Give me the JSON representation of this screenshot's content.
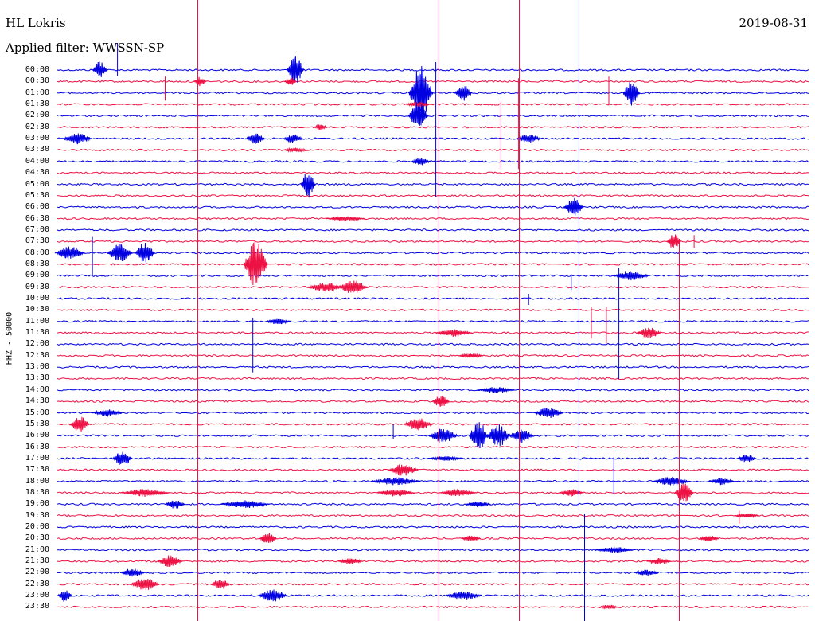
{
  "header": {
    "station": "HL Lokris",
    "filter": "Applied filter: WWSSN-SP",
    "date": "2019-08-31",
    "channel": "HHZ - 50000"
  },
  "chart_data": {
    "type": "line",
    "title": "HL Lokris",
    "subtitle": "Applied filter: WWSSN-SP",
    "date": "2019-08-31",
    "ylabel": "HHZ - 50000",
    "colors": [
      "#0000e0",
      "#ee1144"
    ],
    "row_labels": [
      "00:00",
      "00:30",
      "01:00",
      "01:30",
      "02:00",
      "02:30",
      "03:00",
      "03:30",
      "04:00",
      "04:30",
      "05:00",
      "05:30",
      "06:00",
      "06:30",
      "07:00",
      "07:30",
      "08:00",
      "08:30",
      "09:00",
      "09:30",
      "10:00",
      "10:30",
      "11:00",
      "11:30",
      "12:00",
      "12:30",
      "13:00",
      "13:30",
      "14:00",
      "14:30",
      "15:00",
      "15:30",
      "16:00",
      "16:30",
      "17:00",
      "17:30",
      "18:00",
      "18:30",
      "19:00",
      "19:30",
      "20:00",
      "20:30",
      "21:00",
      "21:30",
      "22:00",
      "22:30",
      "23:00",
      "23:30"
    ],
    "events": [
      {
        "row": 0,
        "minute": 1.7,
        "amp": 11,
        "dur": 0.6
      },
      {
        "row": 0,
        "minute": 9.5,
        "amp": 18,
        "dur": 0.7
      },
      {
        "row": 1,
        "minute": 5.7,
        "amp": 6,
        "dur": 0.5
      },
      {
        "row": 1,
        "minute": 9.3,
        "amp": 5,
        "dur": 0.5
      },
      {
        "row": 2,
        "minute": 14.5,
        "amp": 34,
        "dur": 1.0
      },
      {
        "row": 2,
        "minute": 16.2,
        "amp": 10,
        "dur": 0.7
      },
      {
        "row": 2,
        "minute": 22.9,
        "amp": 16,
        "dur": 0.7
      },
      {
        "row": 3,
        "minute": 14.4,
        "amp": 4,
        "dur": 1.0
      },
      {
        "row": 4,
        "minute": 14.4,
        "amp": 18,
        "dur": 0.8
      },
      {
        "row": 5,
        "minute": 10.5,
        "amp": 5,
        "dur": 0.5
      },
      {
        "row": 6,
        "minute": 0.8,
        "amp": 7,
        "dur": 1.2
      },
      {
        "row": 6,
        "minute": 7.9,
        "amp": 7,
        "dur": 0.8
      },
      {
        "row": 6,
        "minute": 9.4,
        "amp": 6,
        "dur": 0.8
      },
      {
        "row": 6,
        "minute": 18.8,
        "amp": 6,
        "dur": 1.0
      },
      {
        "row": 7,
        "minute": 9.5,
        "amp": 3,
        "dur": 1.0
      },
      {
        "row": 8,
        "minute": 14.5,
        "amp": 5,
        "dur": 0.8
      },
      {
        "row": 10,
        "minute": 10.0,
        "amp": 18,
        "dur": 0.6
      },
      {
        "row": 12,
        "minute": 20.6,
        "amp": 12,
        "dur": 0.8
      },
      {
        "row": 13,
        "minute": 11.5,
        "amp": 3,
        "dur": 1.6
      },
      {
        "row": 15,
        "minute": 24.6,
        "amp": 10,
        "dur": 0.6
      },
      {
        "row": 16,
        "minute": 0.5,
        "amp": 9,
        "dur": 1.2
      },
      {
        "row": 16,
        "minute": 2.5,
        "amp": 12,
        "dur": 1.0
      },
      {
        "row": 16,
        "minute": 3.5,
        "amp": 14,
        "dur": 0.8
      },
      {
        "row": 17,
        "minute": 7.9,
        "amp": 30,
        "dur": 1.0
      },
      {
        "row": 18,
        "minute": 22.9,
        "amp": 6,
        "dur": 1.5
      },
      {
        "row": 19,
        "minute": 10.7,
        "amp": 6,
        "dur": 1.5
      },
      {
        "row": 19,
        "minute": 11.8,
        "amp": 9,
        "dur": 1.2
      },
      {
        "row": 22,
        "minute": 8.8,
        "amp": 4,
        "dur": 1.0
      },
      {
        "row": 23,
        "minute": 15.8,
        "amp": 5,
        "dur": 1.5
      },
      {
        "row": 23,
        "minute": 23.6,
        "amp": 7,
        "dur": 1.0
      },
      {
        "row": 25,
        "minute": 16.5,
        "amp": 3,
        "dur": 1.0
      },
      {
        "row": 28,
        "minute": 17.5,
        "amp": 4,
        "dur": 1.5
      },
      {
        "row": 29,
        "minute": 15.3,
        "amp": 8,
        "dur": 0.7
      },
      {
        "row": 30,
        "minute": 2.0,
        "amp": 5,
        "dur": 1.2
      },
      {
        "row": 30,
        "minute": 19.6,
        "amp": 7,
        "dur": 1.2
      },
      {
        "row": 31,
        "minute": 0.9,
        "amp": 10,
        "dur": 0.8
      },
      {
        "row": 31,
        "minute": 14.4,
        "amp": 8,
        "dur": 1.2
      },
      {
        "row": 32,
        "minute": 15.4,
        "amp": 10,
        "dur": 1.2
      },
      {
        "row": 32,
        "minute": 16.8,
        "amp": 20,
        "dur": 0.8
      },
      {
        "row": 32,
        "minute": 17.6,
        "amp": 14,
        "dur": 1.0
      },
      {
        "row": 32,
        "minute": 18.5,
        "amp": 10,
        "dur": 1.0
      },
      {
        "row": 34,
        "minute": 2.6,
        "amp": 10,
        "dur": 0.8
      },
      {
        "row": 34,
        "minute": 15.5,
        "amp": 3,
        "dur": 1.5
      },
      {
        "row": 34,
        "minute": 27.5,
        "amp": 5,
        "dur": 0.8
      },
      {
        "row": 35,
        "minute": 13.8,
        "amp": 8,
        "dur": 1.2
      },
      {
        "row": 36,
        "minute": 13.5,
        "amp": 5,
        "dur": 2.0
      },
      {
        "row": 36,
        "minute": 24.5,
        "amp": 6,
        "dur": 1.5
      },
      {
        "row": 36,
        "minute": 26.5,
        "amp": 5,
        "dur": 1.0
      },
      {
        "row": 37,
        "minute": 3.5,
        "amp": 5,
        "dur": 2.0
      },
      {
        "row": 37,
        "minute": 13.5,
        "amp": 5,
        "dur": 1.5
      },
      {
        "row": 37,
        "minute": 16.0,
        "amp": 5,
        "dur": 1.5
      },
      {
        "row": 37,
        "minute": 20.5,
        "amp": 5,
        "dur": 1.0
      },
      {
        "row": 37,
        "minute": 25.0,
        "amp": 12,
        "dur": 0.8
      },
      {
        "row": 38,
        "minute": 4.7,
        "amp": 6,
        "dur": 0.8
      },
      {
        "row": 38,
        "minute": 7.5,
        "amp": 5,
        "dur": 2.0
      },
      {
        "row": 38,
        "minute": 16.8,
        "amp": 4,
        "dur": 1.0
      },
      {
        "row": 39,
        "minute": 27.5,
        "amp": 3,
        "dur": 1.0
      },
      {
        "row": 41,
        "minute": 8.4,
        "amp": 8,
        "dur": 0.7
      },
      {
        "row": 41,
        "minute": 16.5,
        "amp": 4,
        "dur": 0.8
      },
      {
        "row": 41,
        "minute": 26.0,
        "amp": 5,
        "dur": 0.8
      },
      {
        "row": 42,
        "minute": 22.2,
        "amp": 4,
        "dur": 1.5
      },
      {
        "row": 43,
        "minute": 4.5,
        "amp": 8,
        "dur": 1.0
      },
      {
        "row": 43,
        "minute": 11.7,
        "amp": 4,
        "dur": 1.0
      },
      {
        "row": 43,
        "minute": 24.0,
        "amp": 4,
        "dur": 1.0
      },
      {
        "row": 44,
        "minute": 3.0,
        "amp": 6,
        "dur": 1.0
      },
      {
        "row": 44,
        "minute": 23.5,
        "amp": 4,
        "dur": 1.0
      },
      {
        "row": 45,
        "minute": 3.5,
        "amp": 8,
        "dur": 1.2
      },
      {
        "row": 45,
        "minute": 6.5,
        "amp": 7,
        "dur": 0.8
      },
      {
        "row": 46,
        "minute": 0.3,
        "amp": 8,
        "dur": 0.6
      },
      {
        "row": 46,
        "minute": 8.6,
        "amp": 8,
        "dur": 1.2
      },
      {
        "row": 46,
        "minute": 16.2,
        "amp": 6,
        "dur": 1.5
      },
      {
        "row": 47,
        "minute": 22.0,
        "amp": 3,
        "dur": 0.8
      }
    ],
    "spikes": [
      {
        "row": 0,
        "minute": 2.4,
        "up": 34,
        "down": 8
      },
      {
        "row": 0,
        "minute": 15.1,
        "up": 10,
        "down": 160
      },
      {
        "row": 1,
        "minute": 4.3,
        "up": 6,
        "down": 24
      },
      {
        "row": 1,
        "minute": 18.4,
        "up": 4,
        "down": 110
      },
      {
        "row": 1,
        "minute": 22.0,
        "up": 6,
        "down": 30
      },
      {
        "row": 3,
        "minute": 17.7,
        "up": 4,
        "down": 82
      },
      {
        "row": 15,
        "minute": 25.4,
        "up": 8,
        "down": 8
      },
      {
        "row": 16,
        "minute": 1.4,
        "up": 20,
        "down": 28
      },
      {
        "row": 18,
        "minute": 20.5,
        "up": 2,
        "down": 18
      },
      {
        "row": 18,
        "minute": 22.4,
        "up": 10,
        "down": 130
      },
      {
        "row": 20,
        "minute": 18.8,
        "up": 6,
        "down": 8
      },
      {
        "row": 21,
        "minute": 21.3,
        "up": 4,
        "down": 36
      },
      {
        "row": 21,
        "minute": 21.9,
        "up": 4,
        "down": 42
      },
      {
        "row": 22,
        "minute": 7.8,
        "up": 4,
        "down": 64
      },
      {
        "row": 32,
        "minute": 13.4,
        "up": 14,
        "down": 4
      },
      {
        "row": 34,
        "minute": 22.2,
        "up": 2,
        "down": 44
      },
      {
        "row": 39,
        "minute": 27.2,
        "up": 6,
        "down": 10
      }
    ],
    "verticals": [
      {
        "minute": 5.6,
        "color": "#ee1144",
        "y0": 0,
        "y1": 780
      },
      {
        "minute": 15.2,
        "color": "#ee1144",
        "y0": 0,
        "y1": 780
      },
      {
        "minute": 18.4,
        "color": "#ee1144",
        "y0": 0,
        "y1": 780
      },
      {
        "minute": 20.8,
        "color": "#0000e0",
        "y0": 0,
        "y1": 640
      },
      {
        "minute": 21.0,
        "color": "#0000e0",
        "y0": 645,
        "y1": 780
      },
      {
        "minute": 24.8,
        "color": "#ee1144",
        "y0": 300,
        "y1": 780
      }
    ]
  }
}
